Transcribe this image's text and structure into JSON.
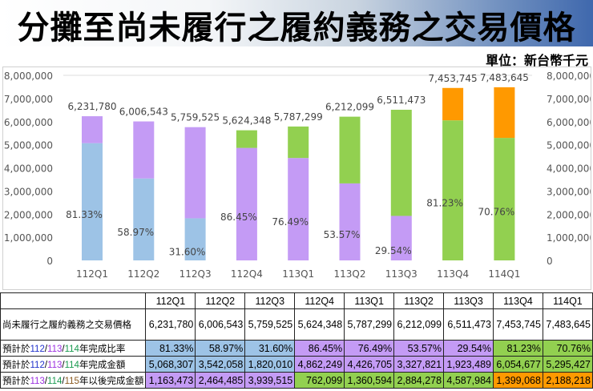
{
  "title": "分攤至尚未履行之履約義務之交易價格",
  "unit": "單位：新台幣千元",
  "colors": {
    "blue": "#9dc3e6",
    "purple": "#c49bf5",
    "green": "#92d050",
    "orange": "#ff9900"
  },
  "chart_data": {
    "type": "bar",
    "stacked": true,
    "categories": [
      "112Q1",
      "112Q2",
      "112Q3",
      "112Q4",
      "113Q1",
      "113Q2",
      "113Q3",
      "113Q4",
      "114Q1"
    ],
    "totals": [
      6231780,
      6006543,
      5759525,
      5624348,
      5787299,
      6212099,
      6511473,
      7453745,
      7483645
    ],
    "total_labels": [
      "6,231,780",
      "6,006,543",
      "5,759,525",
      "5,624,348",
      "5,787,299",
      "6,212,099",
      "6,511,473",
      "7,453,745",
      "7,483,645"
    ],
    "completed": [
      5068307,
      3542058,
      1820010,
      4862249,
      4426705,
      3327821,
      1923489,
      6054677,
      5295427
    ],
    "remaining": [
      1163473,
      2464485,
      3939515,
      762099,
      1360594,
      2884278,
      4587984,
      1399068,
      2188218
    ],
    "ratio_labels": [
      "81.33%",
      "58.97%",
      "31.60%",
      "86.45%",
      "76.49%",
      "53.57%",
      "29.54%",
      "81.23%",
      "70.76%"
    ],
    "bottom_colors": [
      "blue",
      "blue",
      "blue",
      "purple",
      "purple",
      "purple",
      "purple",
      "green",
      "green"
    ],
    "top_colors": [
      "purple",
      "purple",
      "purple",
      "green",
      "green",
      "green",
      "green",
      "orange",
      "orange"
    ],
    "ylim": [
      0,
      8000000
    ],
    "yticks": [
      "0",
      "1,000,000",
      "2,000,000",
      "3,000,000",
      "4,000,000",
      "5,000,000",
      "6,000,000",
      "7,000,000",
      "8,000,000"
    ],
    "grid": false
  },
  "table": {
    "headers": [
      "112Q1",
      "112Q2",
      "112Q3",
      "112Q4",
      "113Q1",
      "113Q2",
      "113Q3",
      "113Q4",
      "114Q1"
    ],
    "rows": [
      {
        "label": "尚未履行之履約義務之交易價格",
        "cells": [
          "6,231,780",
          "6,006,543",
          "5,759,525",
          "5,624,348",
          "5,787,299",
          "6,212,099",
          "6,511,473",
          "7,453,745",
          "7,483,645"
        ]
      },
      {
        "label_parts": [
          "預計於",
          "112",
          "/",
          "113",
          "/",
          "114",
          "年完成比率"
        ],
        "cells": [
          "81.33%",
          "58.97%",
          "31.60%",
          "86.45%",
          "76.49%",
          "53.57%",
          "29.54%",
          "81.23%",
          "70.76%"
        ]
      },
      {
        "label_parts": [
          "預計於",
          "112",
          "/",
          "113",
          "/",
          "114",
          "年完成金額"
        ],
        "cells": [
          "5,068,307",
          "3,542,058",
          "1,820,010",
          "4,862,249",
          "4,426,705",
          "3,327,821",
          "1,923,489",
          "6,054,677",
          "5,295,427"
        ]
      },
      {
        "label_parts": [
          "預計於",
          "113",
          "/",
          "114",
          "/",
          "115",
          "年以後完成金額"
        ],
        "cells": [
          "1,163,473",
          "2,464,485",
          "3,939,515",
          "762,099",
          "1,360,594",
          "2,884,278",
          "4,587,984",
          "1,399,068",
          "2,188,218"
        ]
      }
    ]
  }
}
